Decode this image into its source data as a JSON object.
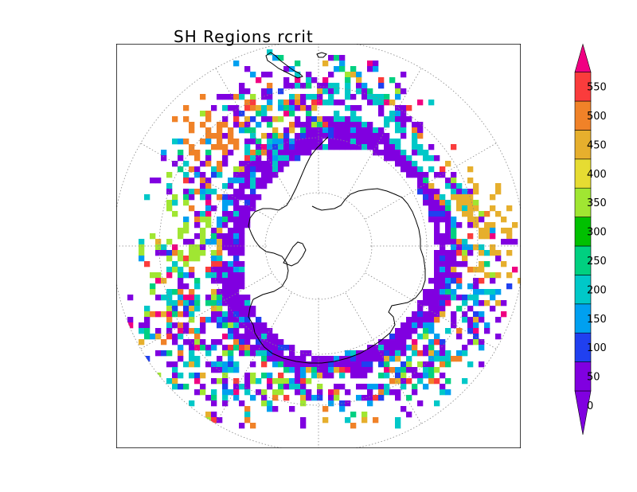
{
  "map": {
    "title": "SH Regions rcrit",
    "projection": "south-polar-stereographic",
    "grid": "dotted"
  },
  "legend": {
    "tick_labels": [
      "0",
      "50",
      "100",
      "150",
      "200",
      "250",
      "300",
      "350",
      "400",
      "450",
      "500",
      "550"
    ],
    "colors": [
      "#8000e0",
      "#2040f0",
      "#00a0f0",
      "#00c8c8",
      "#00d080",
      "#00c000",
      "#a0e632",
      "#e6dc32",
      "#e6af2d",
      "#f08228",
      "#fa3c3c",
      "#f00082"
    ]
  }
}
